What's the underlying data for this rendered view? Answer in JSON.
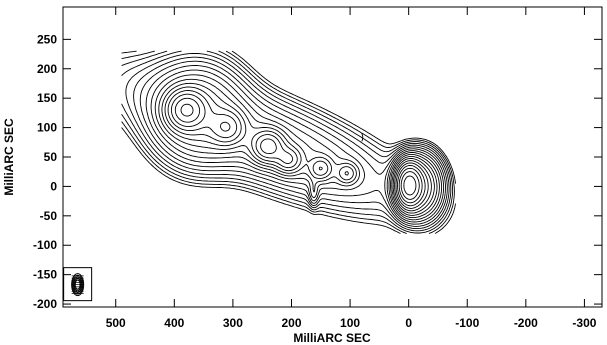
{
  "chart_data": {
    "type": "contour",
    "xlabel": "MilliARC SEC",
    "ylabel": "MilliARC SEC",
    "xlim": [
      590,
      -330
    ],
    "ylim": [
      -205,
      305
    ],
    "xticks": [
      500,
      400,
      300,
      200,
      100,
      0,
      -100,
      -200,
      -300
    ],
    "xtick_labels": [
      "500",
      "400",
      "300",
      "200",
      "100",
      "0",
      "-100",
      "-200",
      "-300"
    ],
    "yticks": [
      250,
      200,
      150,
      100,
      50,
      0,
      -50,
      -100,
      -150,
      -200
    ],
    "ytick_labels": [
      "250",
      "200",
      "150",
      "100",
      "50",
      "0",
      "-50",
      "-100",
      "-150",
      "-200"
    ],
    "components": [
      {
        "id": "core",
        "peak_x": 0,
        "peak_y": 2
      },
      {
        "id": "jet",
        "knots": [
          {
            "x": 380,
            "y": 130
          },
          {
            "x": 310,
            "y": 100
          },
          {
            "x": 240,
            "y": 68
          },
          {
            "x": 205,
            "y": 45
          },
          {
            "x": 150,
            "y": 30
          },
          {
            "x": 105,
            "y": 22
          }
        ]
      }
    ],
    "beam": {
      "x": 565,
      "y": -167
    }
  }
}
